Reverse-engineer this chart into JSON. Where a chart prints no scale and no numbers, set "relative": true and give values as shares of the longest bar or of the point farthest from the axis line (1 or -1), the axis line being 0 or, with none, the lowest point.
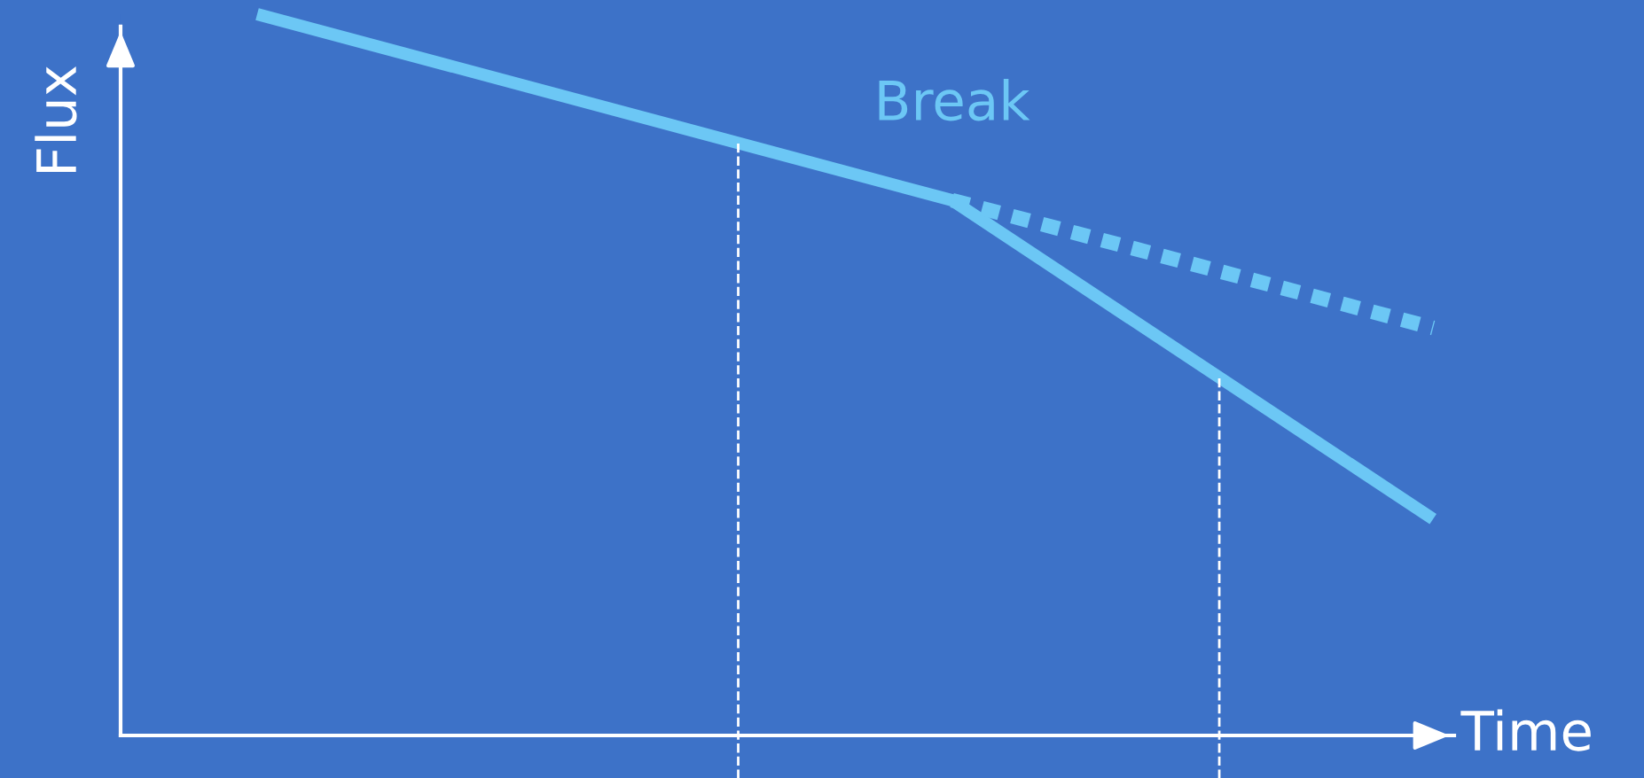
{
  "chart_data": {
    "type": "line",
    "relative": true,
    "xlabel": "Time",
    "ylabel": "Flux",
    "categories": [
      null,
      null,
      null,
      null,
      null,
      null,
      null,
      null,
      null,
      null,
      null,
      null,
      null,
      null,
      null,
      null,
      null,
      null,
      null,
      null,
      null,
      null,
      null
    ],
    "series": [
      {
        "color": "#6cc7f5",
        "values": [
          1,
          null,
          null,
          null,
          null,
          null,
          null,
          null,
          null,
          null,
          null,
          null,
          null,
          0.742,
          null,
          null,
          null,
          null,
          null,
          null,
          null,
          null,
          0.3
        ],
        "line_style": "solid"
      },
      {
        "color": "#6cc7f5",
        "values": [
          null,
          null,
          null,
          null,
          null,
          null,
          null,
          null,
          null,
          null,
          null,
          null,
          null,
          0.742,
          null,
          null,
          null,
          null,
          null,
          null,
          null,
          null,
          0.565
        ],
        "line_style": "dotted"
      }
    ],
    "annotations": [
      "Break"
    ],
    "legend": false,
    "marker": "none"
  }
}
